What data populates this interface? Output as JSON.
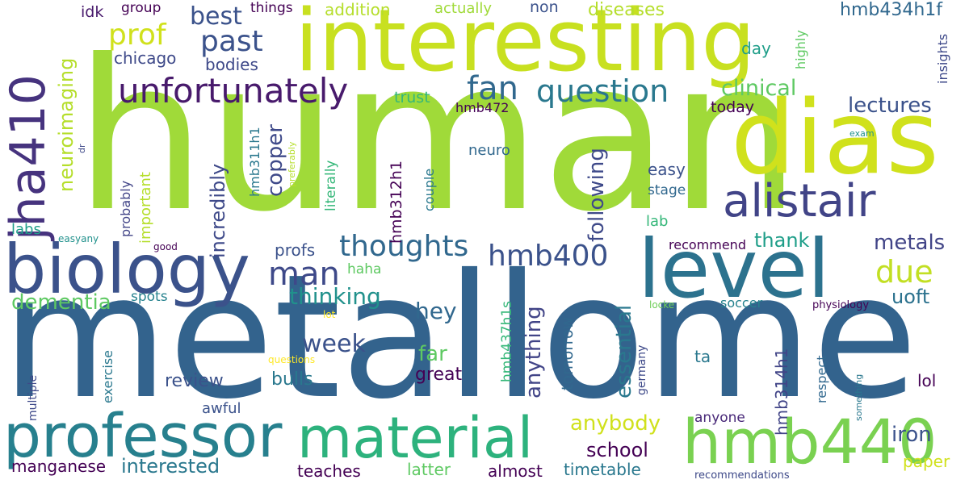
{
  "words": {
    "human": "human",
    "metallome": "metallome",
    "interesting": "interesting",
    "dias": "dias",
    "level": "level",
    "biology": "biology",
    "professor": "professor",
    "material": "material",
    "hmb440": "hmb440",
    "alistair": "alistair",
    "jha410": "jha410",
    "unfortunately": "unfortunately",
    "question": "question",
    "fan": "fan",
    "thoughts": "thoughts",
    "hmb400": "hmb400",
    "man": "man",
    "due": "due",
    "past": "past",
    "prof": "prof",
    "best": "best",
    "neuroimaging": "neuroimaging",
    "lectures": "lectures",
    "clinical": "clinical",
    "metals": "metals",
    "dementia": "dementia",
    "thinking": "thinking",
    "week": "week",
    "hey": "hey",
    "far": "far",
    "uoft": "uoft",
    "thank": "thank",
    "copper": "copper",
    "incredibly": "incredibly",
    "following": "following",
    "anything": "anything",
    "essential": "essential",
    "anybody": "anybody",
    "school": "school",
    "interested": "interested",
    "manganese": "manganese",
    "iron": "iron",
    "review": "review",
    "great": "great",
    "bulls": "bulls",
    "hmb434h1f": "hmb434h1f",
    "addition": "addition",
    "diseases": "diseases",
    "actually": "actually",
    "things": "things",
    "group": "group",
    "idk": "idk",
    "non": "non",
    "chicago": "chicago",
    "bodies": "bodies",
    "day": "day",
    "highly": "highly",
    "insights": "insights",
    "today": "today",
    "trust": "trust",
    "hmb472": "hmb472",
    "hmb312h1": "hmb312h1",
    "hmb311h1": "hmb311h1",
    "literally": "literally",
    "neuro": "neuro",
    "easy": "easy",
    "stage": "stage",
    "lab": "lab",
    "couple": "couple",
    "important": "important",
    "probably": "probably",
    "preferably": "preferably",
    "dr": "dr",
    "exam": "exam",
    "labs": "labs",
    "easyany": "easyany",
    "good": "good",
    "recommend": "recommend",
    "profs": "profs",
    "haha": "haha",
    "spots": "spots",
    "hmb437h1s": "hmb437h1s",
    "tomorrow": "tomorrow",
    "lot": "lot",
    "locke": "locke",
    "soccer": "soccer",
    "physiology": "physiology",
    "multiple": "multiple",
    "exercise": "exercise",
    "questions": "questions",
    "ta": "ta",
    "hmb314h1": "hmb314h1",
    "respect": "respect",
    "something": "something",
    "lol": "lol",
    "germany": "germany",
    "awful": "awful",
    "anyone": "anyone",
    "teaches": "teaches",
    "latter": "latter",
    "almost": "almost",
    "timetable": "timetable",
    "paper": "paper",
    "recommendations": "recommendations"
  },
  "colors": {
    "background": "#ffffff",
    "palette": [
      "#440154",
      "#482878",
      "#3e4989",
      "#31688e",
      "#26828e",
      "#1f9e89",
      "#35b779",
      "#6ece58",
      "#b5de2b",
      "#fde725"
    ]
  }
}
